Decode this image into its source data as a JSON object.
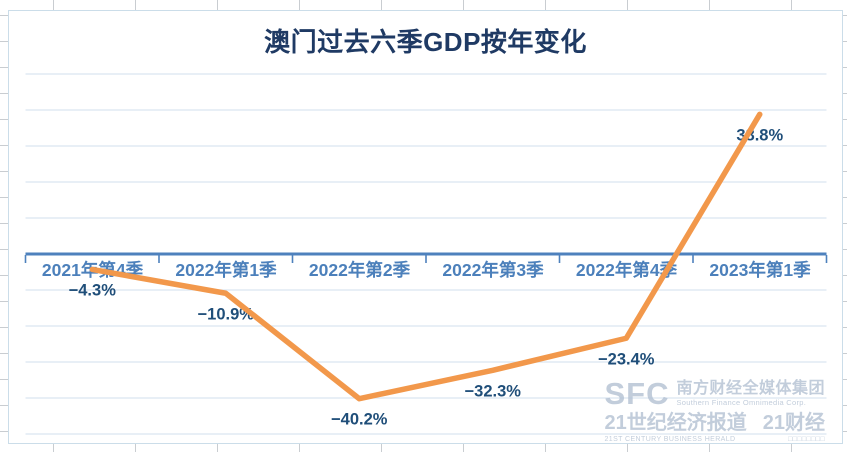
{
  "chart_data": {
    "type": "line",
    "title": "澳门过去六季GDP按年变化",
    "categories": [
      "2021年第4季",
      "2022年第1季",
      "2022年第2季",
      "2022年第3季",
      "2022年第4季",
      "2023年第1季"
    ],
    "series": [
      {
        "values": [
          -4.3,
          -10.9,
          -40.2,
          -32.3,
          -23.4,
          38.8
        ]
      }
    ],
    "data_labels": [
      "−4.3%",
      "−10.9%",
      "−40.2%",
      "−32.3%",
      "−23.4%",
      "38.8%"
    ],
    "ylim": [
      -50,
      50
    ],
    "gridline_interval": 10,
    "grid": "horizontal-only",
    "legend": "none",
    "value_axis_labels": "hidden",
    "line_color": "#f2984b",
    "axis_color": "#4e81bd",
    "gridline_color": "#dbe5f1",
    "title_color": "#1f3a64",
    "category_label_color": "#4c80bb",
    "data_label_color": "#1f4e79"
  },
  "watermark": {
    "logo_text": "SFC",
    "org_cn": "南方财经全媒体集团",
    "org_en": "Southern Finance Omnimedia Corp.",
    "brand_cn_1": "21世纪经济报道",
    "brand_cn_2": "21财经",
    "brand_en": "21ST CENTURY BUSINESS HERALD",
    "matrix_icons": "□□□□□□□□"
  }
}
